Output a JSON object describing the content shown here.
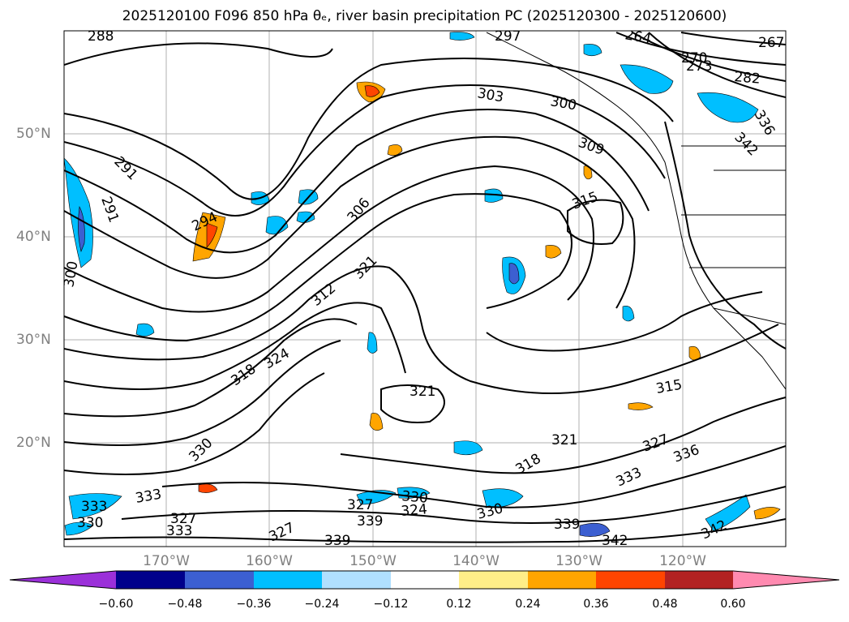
{
  "title": "2025120100 F096 850 hPa θₑ, river basin precipitation PC (2025120300 - 2025120600)",
  "map": {
    "lat_labels": [
      "50°N",
      "40°N",
      "30°N",
      "20°N"
    ],
    "lon_labels": [
      "170°W",
      "160°W",
      "150°W",
      "140°W",
      "130°W",
      "120°W"
    ],
    "contour_labels": [
      "288",
      "291",
      "291",
      "294",
      "300",
      "297",
      "303",
      "306",
      "309",
      "312",
      "315",
      "318",
      "321",
      "324",
      "327",
      "330",
      "333",
      "336",
      "339",
      "342",
      "264",
      "267",
      "270",
      "273",
      "282",
      "300",
      "315",
      "321",
      "327",
      "318",
      "321",
      "333",
      "330",
      "324",
      "327",
      "330",
      "339",
      "342",
      "336",
      "342",
      "333",
      "330",
      "333",
      "327",
      "339"
    ]
  },
  "colorbar": {
    "tick_labels": [
      "−0.60",
      "−0.48",
      "−0.36",
      "−0.24",
      "−0.12",
      "0.12",
      "0.24",
      "0.36",
      "0.48",
      "0.60"
    ],
    "colors": [
      "#9b30d9",
      "#00008b",
      "#3c5fd1",
      "#00bfff",
      "#b0e0ff",
      "#ffffff",
      "#ffee88",
      "#ffa500",
      "#ff4500",
      "#b22222",
      "#ff8ab0"
    ]
  }
}
